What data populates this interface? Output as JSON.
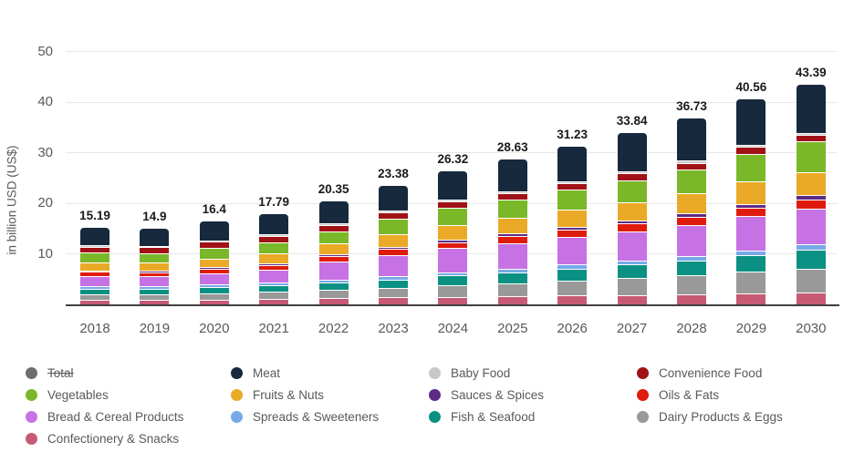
{
  "chart_data": {
    "type": "bar",
    "subtype": "stacked-vertical",
    "title": "",
    "ylabel": "in billion USD (US$)",
    "xlabel": "",
    "y_ticks": [
      10,
      20,
      30,
      40,
      50
    ],
    "ylim": [
      0,
      52
    ],
    "grid": true,
    "legend_position": "bottom",
    "categories": [
      "2018",
      "2019",
      "2020",
      "2021",
      "2022",
      "2023",
      "2024",
      "2025",
      "2026",
      "2027",
      "2028",
      "2029",
      "2030"
    ],
    "totals": [
      "15.19",
      "14.9",
      "16.4",
      "17.79",
      "20.35",
      "23.38",
      "26.32",
      "28.63",
      "31.23",
      "33.84",
      "36.73",
      "40.56",
      "43.39"
    ],
    "stacking_note": "series listed top-to-bottom as stacked in each bar",
    "series": [
      {
        "name": "Meat",
        "color": "#16293d",
        "values": [
          3.5,
          3.35,
          3.7,
          3.95,
          4.3,
          4.85,
          5.6,
          6.2,
          6.9,
          7.55,
          8.3,
          9.0,
          9.45
        ]
      },
      {
        "name": "Baby Food",
        "color": "#c8c8c8",
        "values": [
          0.3,
          0.29,
          0.31,
          0.33,
          0.36,
          0.38,
          0.4,
          0.41,
          0.42,
          0.43,
          0.44,
          0.45,
          0.45
        ]
      },
      {
        "name": "Convenience Food",
        "color": "#a11216",
        "values": [
          1.15,
          1.1,
          1.14,
          1.18,
          1.22,
          1.25,
          1.27,
          1.28,
          1.29,
          1.3,
          1.3,
          1.31,
          1.3
        ]
      },
      {
        "name": "Vegetables",
        "color": "#7ab829",
        "values": [
          1.99,
          1.95,
          2.2,
          2.31,
          2.45,
          3.0,
          3.35,
          3.65,
          3.95,
          4.3,
          4.7,
          5.45,
          6.05
        ]
      },
      {
        "name": "Fruits & Nuts",
        "color": "#eaaa27",
        "values": [
          1.6,
          1.58,
          1.72,
          1.88,
          2.18,
          2.57,
          2.89,
          3.09,
          3.37,
          3.65,
          4.0,
          4.45,
          4.59
        ]
      },
      {
        "name": "Sauces & Spices",
        "color": "#5e2a84",
        "values": [
          0.25,
          0.25,
          0.28,
          0.31,
          0.36,
          0.42,
          0.48,
          0.54,
          0.6,
          0.67,
          0.74,
          0.82,
          0.9
        ]
      },
      {
        "name": "Oils & Fats",
        "color": "#df1b0e",
        "values": [
          0.9,
          0.87,
          0.93,
          0.99,
          1.08,
          1.17,
          1.25,
          1.33,
          1.41,
          1.49,
          1.57,
          1.66,
          1.75
        ]
      },
      {
        "name": "Bread & Cereal Products",
        "color": "#c672e4",
        "values": [
          1.95,
          1.96,
          2.2,
          2.5,
          3.55,
          4.2,
          4.75,
          5.1,
          5.45,
          5.8,
          6.13,
          6.75,
          7.05
        ]
      },
      {
        "name": "Spreads & Sweeteners",
        "color": "#77a9e8",
        "values": [
          0.45,
          0.44,
          0.47,
          0.5,
          0.55,
          0.6,
          0.65,
          0.7,
          0.76,
          0.82,
          0.88,
          0.94,
          1.0
        ]
      },
      {
        "name": "Fish & Seafood",
        "color": "#0b9183",
        "values": [
          1.15,
          1.14,
          1.25,
          1.37,
          1.5,
          1.7,
          1.95,
          2.15,
          2.4,
          2.65,
          2.95,
          3.3,
          3.75
        ]
      },
      {
        "name": "Dairy Products & Eggs",
        "color": "#999999",
        "values": [
          1.15,
          1.17,
          1.3,
          1.45,
          1.62,
          1.9,
          2.25,
          2.58,
          2.95,
          3.32,
          3.72,
          4.25,
          4.75
        ]
      },
      {
        "name": "Confectionery & Snacks",
        "color": "#c65a74",
        "values": [
          0.8,
          0.8,
          0.9,
          1.02,
          1.18,
          1.34,
          1.48,
          1.6,
          1.73,
          1.86,
          2.0,
          2.18,
          2.35
        ]
      }
    ],
    "legend": [
      {
        "label": "Total",
        "color": "#6e6e6e",
        "strikethrough": true
      },
      {
        "label": "Meat",
        "color": "#16293d",
        "strikethrough": false
      },
      {
        "label": "Baby Food",
        "color": "#c8c8c8",
        "strikethrough": false
      },
      {
        "label": "Convenience Food",
        "color": "#a11216",
        "strikethrough": false
      },
      {
        "label": "Vegetables",
        "color": "#7ab829",
        "strikethrough": false
      },
      {
        "label": "Fruits & Nuts",
        "color": "#eaaa27",
        "strikethrough": false
      },
      {
        "label": "Sauces & Spices",
        "color": "#5e2a84",
        "strikethrough": false
      },
      {
        "label": "Oils & Fats",
        "color": "#df1b0e",
        "strikethrough": false
      },
      {
        "label": "Bread & Cereal Products",
        "color": "#c672e4",
        "strikethrough": false
      },
      {
        "label": "Spreads & Sweeteners",
        "color": "#77a9e8",
        "strikethrough": false
      },
      {
        "label": "Fish & Seafood",
        "color": "#0b9183",
        "strikethrough": false
      },
      {
        "label": "Dairy Products & Eggs",
        "color": "#999999",
        "strikethrough": false
      },
      {
        "label": "Confectionery & Snacks",
        "color": "#c65a74",
        "strikethrough": false
      }
    ]
  }
}
